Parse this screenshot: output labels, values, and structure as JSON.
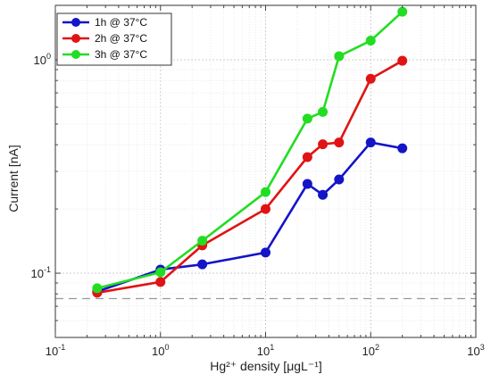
{
  "chart_data": {
    "type": "line",
    "x_scale": "log",
    "y_scale": "log",
    "xlim": [
      0.1,
      1000
    ],
    "ylim": [
      0.05,
      1.8
    ],
    "xlabel": "Hg²⁺ density [μgL⁻¹]",
    "ylabel": "Current [nA]",
    "grid": true,
    "legend_position": "top-left",
    "x_ticks": [
      {
        "value": 0.1,
        "base": "10",
        "exp": "-1"
      },
      {
        "value": 1,
        "base": "10",
        "exp": "0"
      },
      {
        "value": 10,
        "base": "10",
        "exp": "1"
      },
      {
        "value": 100,
        "base": "10",
        "exp": "2"
      },
      {
        "value": 1000,
        "base": "10",
        "exp": "3"
      }
    ],
    "y_ticks": [
      {
        "value": 0.1,
        "base": "10",
        "exp": "-1"
      },
      {
        "value": 1,
        "base": "10",
        "exp": "0"
      }
    ],
    "baseline": {
      "y": 0.076,
      "style": "dashed",
      "color": "#999999"
    },
    "series": [
      {
        "name": "1h @ 37°C",
        "color": "#1414c8",
        "x": [
          0.25,
          1,
          2.5,
          10,
          25,
          35,
          50,
          100,
          200
        ],
        "y": [
          0.082,
          0.104,
          0.11,
          0.125,
          0.262,
          0.233,
          0.275,
          0.41,
          0.385
        ]
      },
      {
        "name": "2h @ 37°C",
        "color": "#e01414",
        "x": [
          0.25,
          1,
          2.5,
          10,
          25,
          35,
          50,
          100,
          200
        ],
        "y": [
          0.081,
          0.091,
          0.135,
          0.2,
          0.35,
          0.402,
          0.41,
          0.815,
          0.99
        ]
      },
      {
        "name": "3h @ 37°C",
        "color": "#22dd22",
        "x": [
          0.25,
          1,
          2.5,
          10,
          25,
          35,
          50,
          100,
          200
        ],
        "y": [
          0.085,
          0.101,
          0.142,
          0.24,
          0.53,
          0.57,
          1.04,
          1.23,
          1.68
        ]
      }
    ]
  }
}
